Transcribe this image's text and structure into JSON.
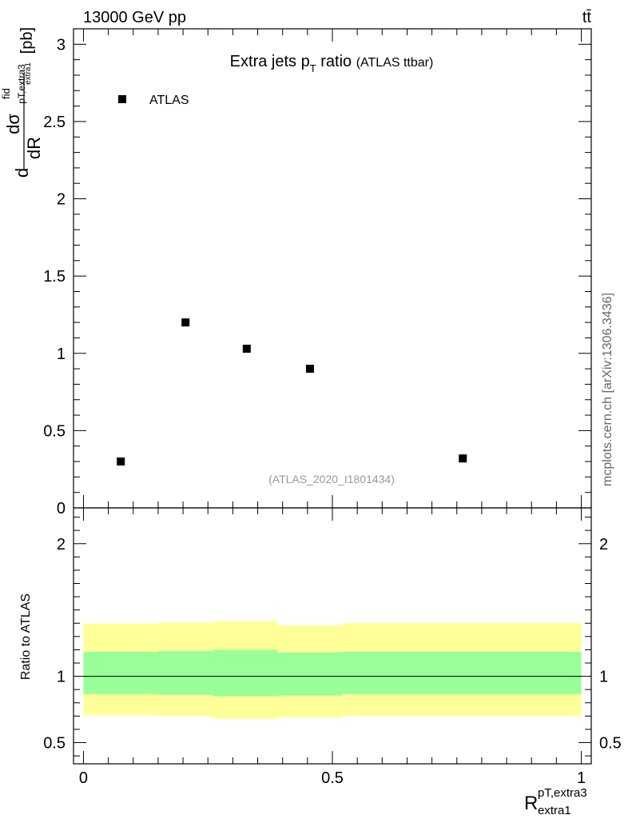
{
  "header": {
    "energy_label": "13000 GeV pp",
    "process_label": "tt̄"
  },
  "side_label": "mcplots.cern.ch [arXiv:1306.3436]",
  "chart_data": [
    {
      "type": "scatter",
      "panel": "main",
      "title": "Extra jets p",
      "title_sub": "T",
      "title_rest": " ratio",
      "title_note": "(ATLAS ttbar)",
      "ylabel_parts": {
        "d_left": "d",
        "numerator": "dσ",
        "numerator_sup": "fid",
        "numerator_sub": "pT,extra3",
        "denominator": "dR",
        "denominator_sub": "extra1",
        "unit": "[pb]"
      },
      "analysis_id": "(ATLAS_2020_I1801434)",
      "xlim": [
        -0.02,
        1.02
      ],
      "ylim": [
        0,
        3.1
      ],
      "yticks": [
        {
          "value": 0,
          "label": "0"
        },
        {
          "value": 0.5,
          "label": "0.5"
        },
        {
          "value": 1,
          "label": "1"
        },
        {
          "value": 1.5,
          "label": "1.5"
        },
        {
          "value": 2,
          "label": "2"
        },
        {
          "value": 2.5,
          "label": "2.5"
        },
        {
          "value": 3,
          "label": "3"
        }
      ],
      "series": [
        {
          "name": "ATLAS",
          "color": "#000000",
          "marker": "square",
          "points": [
            {
              "x": 0.075,
              "y": 0.3
            },
            {
              "x": 0.205,
              "y": 1.2
            },
            {
              "x": 0.328,
              "y": 1.03
            },
            {
              "x": 0.455,
              "y": 0.9
            },
            {
              "x": 0.762,
              "y": 0.32
            }
          ]
        }
      ],
      "legend": [
        {
          "label": "ATLAS",
          "marker": "square"
        }
      ],
      "legend_position": "top-left"
    },
    {
      "type": "area",
      "panel": "ratio",
      "ylabel": "Ratio to ATLAS",
      "xlabel_parts": {
        "base": "R",
        "sup": "pT,extra3",
        "sub": "extra1"
      },
      "xlim": [
        -0.02,
        1.02
      ],
      "ylim": [
        0.34,
        2.27
      ],
      "xticks": [
        {
          "value": 0,
          "label": "0"
        },
        {
          "value": 0.5,
          "label": "0.5"
        },
        {
          "value": 1,
          "label": "1"
        }
      ],
      "yticks": [
        {
          "value": 0.5,
          "label": "0.5"
        },
        {
          "value": 1,
          "label": "1"
        },
        {
          "value": 2,
          "label": "2"
        }
      ],
      "reference_line": 1,
      "bins": [
        {
          "x0": 0.0,
          "x1": 0.15,
          "inner": [
            0.865,
            1.185
          ],
          "outer": [
            0.705,
            1.395
          ]
        },
        {
          "x0": 0.15,
          "x1": 0.26,
          "inner": [
            0.86,
            1.19
          ],
          "outer": [
            0.7,
            1.405
          ]
        },
        {
          "x0": 0.26,
          "x1": 0.39,
          "inner": [
            0.85,
            1.2
          ],
          "outer": [
            0.68,
            1.415
          ]
        },
        {
          "x0": 0.39,
          "x1": 0.52,
          "inner": [
            0.855,
            1.18
          ],
          "outer": [
            0.69,
            1.385
          ]
        },
        {
          "x0": 0.52,
          "x1": 1.0,
          "inner": [
            0.865,
            1.185
          ],
          "outer": [
            0.7,
            1.4
          ]
        }
      ],
      "band_colors": {
        "inner": "#99ff99",
        "outer": "#ffff99"
      }
    }
  ]
}
